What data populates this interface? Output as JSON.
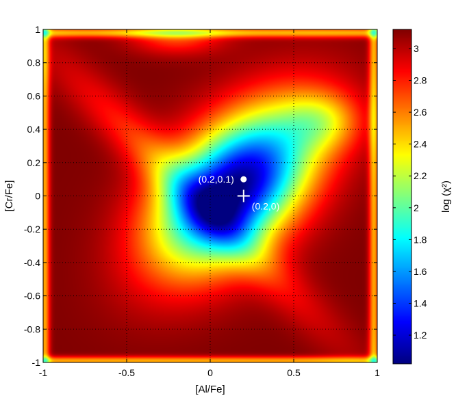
{
  "chart_data": {
    "type": "heatmap",
    "title": "",
    "xlabel": "[Al/Fe]",
    "ylabel": "[Cr/Fe]",
    "xlim": [
      -1,
      1
    ],
    "ylim": [
      -1,
      1
    ],
    "xticks": [
      -1,
      -0.5,
      0,
      0.5,
      1
    ],
    "xtick_labels": [
      "-1",
      "-0.5",
      "0",
      "0.5",
      "1"
    ],
    "yticks": [
      -1,
      -0.8,
      -0.6,
      -0.4,
      -0.2,
      0,
      0.2,
      0.4,
      0.6,
      0.8,
      1
    ],
    "ytick_labels": [
      "-1",
      "-0.8",
      "-0.6",
      "-0.4",
      "-0.2",
      "0",
      "0.2",
      "0.4",
      "0.6",
      "0.8",
      "1"
    ],
    "grid": true,
    "grid_style": "dotted",
    "colormap": "jet",
    "colorbar": {
      "label": "log (χ²)",
      "range": [
        1.02,
        3.12
      ],
      "ticks": [
        1.2,
        1.4,
        1.6,
        1.8,
        2,
        2.2,
        2.4,
        2.6,
        2.8,
        3
      ],
      "tick_labels": [
        "1.2",
        "1.4",
        "1.6",
        "1.8",
        "2",
        "2.2",
        "2.4",
        "2.6",
        "2.8",
        "3"
      ]
    },
    "minimum": {
      "x": 0.15,
      "y": 0.05,
      "value": 1.02
    },
    "markers": [
      {
        "kind": "dot",
        "x": 0.2,
        "y": 0.1,
        "label": "(0.2,0.1)",
        "label_side": "left",
        "color": "#ffffff"
      },
      {
        "kind": "cross",
        "x": 0.2,
        "y": 0.0,
        "label": "(0.2,0)",
        "label_side": "below-right",
        "color": "#ffffff"
      }
    ]
  }
}
